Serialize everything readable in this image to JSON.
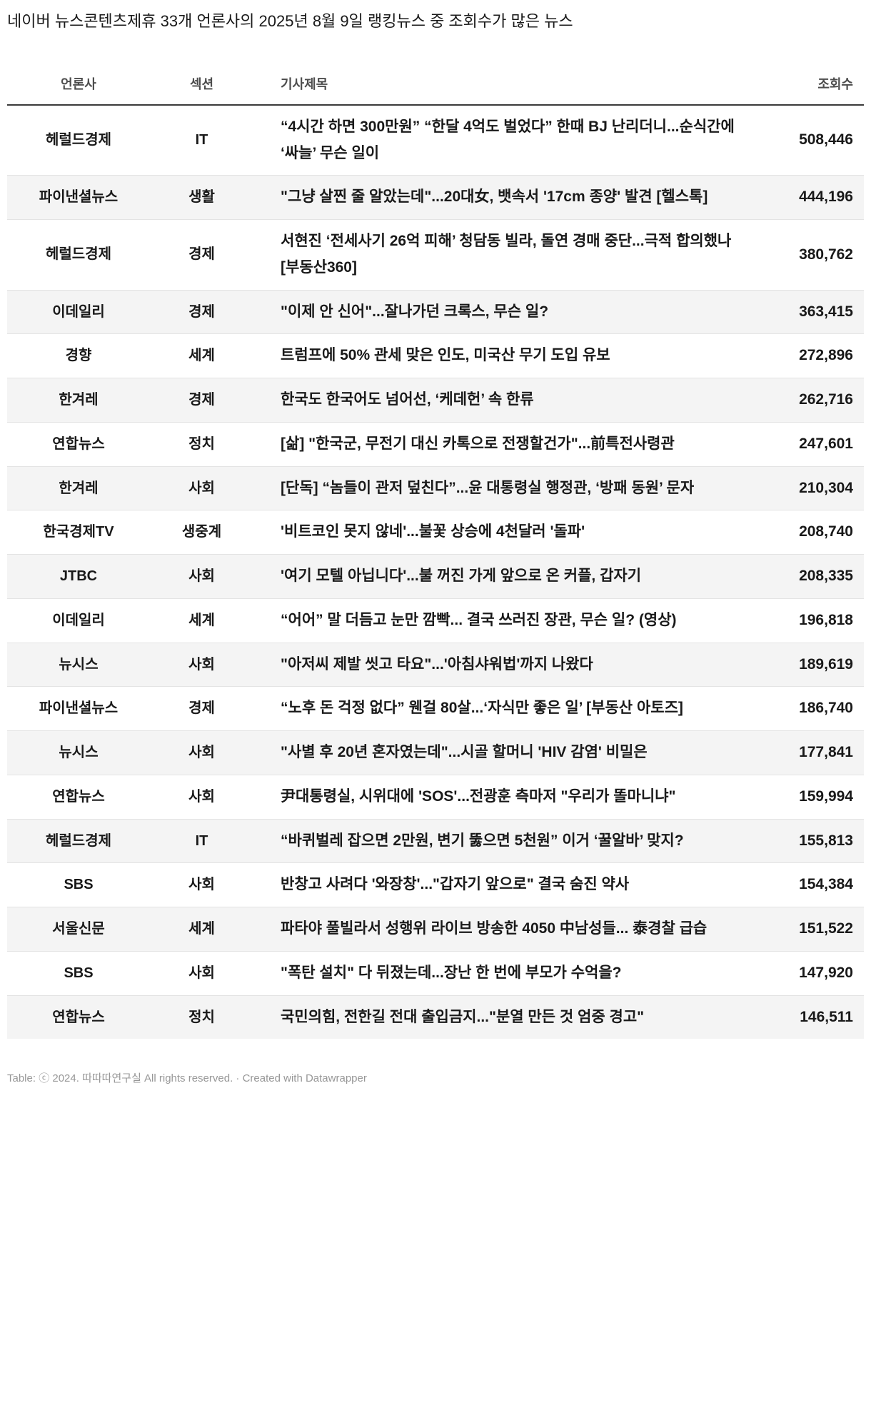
{
  "chart_data": {
    "type": "table",
    "title": "네이버 뉴스콘텐츠제휴 33개 언론사의 2025년 8월 9일 랭킹뉴스 중 조회수가 많은 뉴스",
    "columns": [
      "언론사",
      "섹션",
      "기사제목",
      "조회수"
    ],
    "rows": [
      {
        "outlet": "헤럴드경제",
        "section": "IT",
        "headline": "“4시간 하면 300만원” “한달 4억도 벌었다” 한때 BJ 난리더니...순식간에 ‘싸늘’ 무슨 일이",
        "views": "508,446"
      },
      {
        "outlet": "파이낸셜뉴스",
        "section": "생활",
        "headline": "\"그냥 살찐 줄 알았는데\"...20대女, 뱃속서 '17cm 종양' 발견 [헬스톡]",
        "views": "444,196"
      },
      {
        "outlet": "헤럴드경제",
        "section": "경제",
        "headline": "서현진 ‘전세사기 26억 피해’ 청담동 빌라, 돌연 경매 중단...극적 합의했나 [부동산360]",
        "views": "380,762"
      },
      {
        "outlet": "이데일리",
        "section": "경제",
        "headline": "\"이제 안 신어\"...잘나가던 크록스, 무슨 일?",
        "views": "363,415"
      },
      {
        "outlet": "경향",
        "section": "세계",
        "headline": "트럼프에 50% 관세 맞은 인도, 미국산 무기 도입 유보",
        "views": "272,896"
      },
      {
        "outlet": "한겨레",
        "section": "경제",
        "headline": "한국도 한국어도 넘어선, ‘케데헌’ 속 한류",
        "views": "262,716"
      },
      {
        "outlet": "연합뉴스",
        "section": "정치",
        "headline": "[삶] \"한국군, 무전기 대신 카톡으로 전쟁할건가\"...前특전사령관",
        "views": "247,601"
      },
      {
        "outlet": "한겨레",
        "section": "사회",
        "headline": "[단독] “놈들이 관저 덮친다”...윤 대통령실 행정관, ‘방패 동원’ 문자",
        "views": "210,304"
      },
      {
        "outlet": "한국경제TV",
        "section": "생중계",
        "headline": "'비트코인 못지 않네'...불꽃 상승에 4천달러 '돌파'",
        "views": "208,740"
      },
      {
        "outlet": "JTBC",
        "section": "사회",
        "headline": "'여기 모텔 아닙니다'...불 꺼진 가게 앞으로 온 커플, 갑자기",
        "views": "208,335"
      },
      {
        "outlet": "이데일리",
        "section": "세계",
        "headline": "“어어” 말 더듬고 눈만 깜빡... 결국 쓰러진 장관, 무슨 일? (영상)",
        "views": "196,818"
      },
      {
        "outlet": "뉴시스",
        "section": "사회",
        "headline": "\"아저씨 제발 씻고 타요\"...'아침샤워법'까지 나왔다",
        "views": "189,619"
      },
      {
        "outlet": "파이낸셜뉴스",
        "section": "경제",
        "headline": "“노후 돈 걱정 없다” 웬걸 80살...‘자식만 좋은 일’ [부동산 아토즈]",
        "views": "186,740"
      },
      {
        "outlet": "뉴시스",
        "section": "사회",
        "headline": "\"사별 후 20년 혼자였는데\"...시골 할머니 'HIV 감염' 비밀은",
        "views": "177,841"
      },
      {
        "outlet": "연합뉴스",
        "section": "사회",
        "headline": "尹대통령실, 시위대에 'SOS'...전광훈 측마저 \"우리가 똘마니냐\"",
        "views": "159,994"
      },
      {
        "outlet": "헤럴드경제",
        "section": "IT",
        "headline": "“바퀴벌레 잡으면 2만원, 변기 뚫으면 5천원” 이거 ‘꿀알바’ 맞지?",
        "views": "155,813"
      },
      {
        "outlet": "SBS",
        "section": "사회",
        "headline": "반창고 사려다 '와장창'...\"갑자기 앞으로\" 결국 숨진 약사",
        "views": "154,384"
      },
      {
        "outlet": "서울신문",
        "section": "세계",
        "headline": "파타야 풀빌라서 성행위 라이브 방송한 4050 中남성들... 泰경찰 급습",
        "views": "151,522"
      },
      {
        "outlet": "SBS",
        "section": "사회",
        "headline": "\"폭탄 설치\" 다 뒤졌는데...장난 한 번에 부모가 수억을?",
        "views": "147,920"
      },
      {
        "outlet": "연합뉴스",
        "section": "정치",
        "headline": "국민의힘, 전한길 전대 출입금지...\"분열 만든 것 엄중 경고\"",
        "views": "146,511"
      }
    ],
    "layout_hints": {
      "striped_rows": true,
      "stripe_on": "even",
      "views_align": "right",
      "outlet_align": "center",
      "section_align": "center",
      "headline_align": "left"
    }
  },
  "footer": {
    "attribution": "Table: ⓒ 2024. 따따따연구실 All rights reserved.",
    "separator": "·",
    "credit": "Created with Datawrapper"
  },
  "colors": {
    "background": "#ffffff",
    "text": "#191919",
    "header_text": "#4d4d4d",
    "header_rule": "#3a3a3a",
    "stripe": "#f4f4f4",
    "row_border": "#e3e3e3",
    "footer_text": "#979797"
  }
}
